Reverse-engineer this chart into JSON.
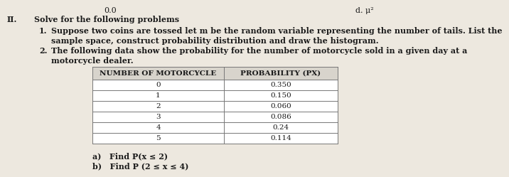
{
  "top_left_text": "0.0",
  "top_right_text": "d. μ²",
  "roman_num": "II.",
  "section_header": "Solve for the following problems",
  "item1_num": "1.",
  "item1_line1": "Suppose two coins are tossed let m be the random variable representing the number of tails. List the",
  "item1_line2": "sample space, construct probability distribution and draw the histogram.",
  "item2_num": "2.",
  "item2_line1": "The following data show the probability for the number of motorcycle sold in a given day at a",
  "item2_line2": "motorcycle dealer.",
  "col1_header": "NUMBER OF MOTORCYCLE",
  "col2_header": "PROBABILITY (PX)",
  "table_data": [
    [
      "0",
      "0.350"
    ],
    [
      "1",
      "0.150"
    ],
    [
      "2",
      "0.060"
    ],
    [
      "3",
      "0.086"
    ],
    [
      "4",
      "0.24"
    ],
    [
      "5",
      "0.114"
    ]
  ],
  "sub_a": "a)   Find P(x ≤ 2)",
  "sub_b": "b)   Find P (2 ≤ x ≤ 4)",
  "bg_color": "#ede8df",
  "text_color": "#1a1a1a",
  "table_bg": "#ffffff",
  "table_line_color": "#777777",
  "header_bg": "#d8d4cc",
  "font_size": 8.0
}
